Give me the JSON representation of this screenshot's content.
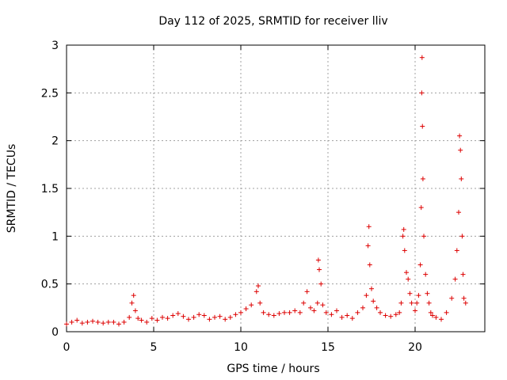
{
  "chart_data": {
    "type": "scatter",
    "title": "Day 112 of 2025, SRMTID for receiver lliv",
    "xlabel": "GPS time / hours",
    "ylabel": "SRMTID / TECUs",
    "xlim": [
      0,
      24
    ],
    "ylim": [
      0,
      3
    ],
    "x_ticks": [
      0,
      5,
      10,
      15,
      20
    ],
    "x_tick_labels": [
      "0",
      "5",
      "10",
      "15",
      "20"
    ],
    "y_ticks": [
      0,
      0.5,
      1,
      1.5,
      2,
      2.5,
      3
    ],
    "y_tick_labels": [
      "0",
      "0.5",
      "1",
      "1.5",
      "2",
      "2.5",
      "3"
    ],
    "grid": true,
    "marker": "+",
    "series_color": "#dd0000",
    "series": [
      {
        "x": [
          0.0,
          0.3,
          0.6,
          0.9,
          1.2,
          1.5,
          1.8,
          2.1,
          2.4,
          2.7,
          3.0,
          3.3,
          3.6,
          3.75,
          3.85,
          3.95,
          4.1,
          4.3,
          4.6,
          4.9,
          5.2,
          5.5,
          5.8,
          6.1,
          6.4,
          6.7,
          7.0,
          7.3,
          7.6,
          7.9,
          8.2,
          8.5,
          8.8,
          9.1,
          9.4,
          9.7,
          10.0,
          10.3,
          10.6,
          10.9,
          11.0,
          11.1,
          11.3,
          11.6,
          11.9,
          12.2,
          12.5,
          12.8,
          13.1,
          13.4,
          13.6,
          13.8,
          14.0,
          14.2,
          14.4,
          14.45,
          14.5,
          14.6,
          14.7,
          14.9,
          15.2,
          15.5,
          15.8,
          16.1,
          16.4,
          16.7,
          17.0,
          17.2,
          17.3,
          17.35,
          17.4,
          17.5,
          17.6,
          17.8,
          18.0,
          18.3,
          18.6,
          18.9,
          19.1,
          19.2,
          19.3,
          19.35,
          19.4,
          19.5,
          19.6,
          19.7,
          19.8,
          20.0,
          20.1,
          20.2,
          20.3,
          20.35,
          20.38,
          20.4,
          20.42,
          20.45,
          20.5,
          20.6,
          20.7,
          20.8,
          20.9,
          21.0,
          21.2,
          21.5,
          21.8,
          22.1,
          22.3,
          22.4,
          22.5,
          22.55,
          22.6,
          22.65,
          22.7,
          22.75,
          22.8,
          22.9
        ],
        "y": [
          0.08,
          0.1,
          0.12,
          0.09,
          0.1,
          0.11,
          0.1,
          0.09,
          0.1,
          0.1,
          0.08,
          0.1,
          0.15,
          0.3,
          0.38,
          0.22,
          0.14,
          0.12,
          0.1,
          0.14,
          0.12,
          0.15,
          0.14,
          0.17,
          0.19,
          0.16,
          0.13,
          0.15,
          0.18,
          0.17,
          0.13,
          0.15,
          0.16,
          0.13,
          0.15,
          0.18,
          0.2,
          0.24,
          0.28,
          0.42,
          0.48,
          0.3,
          0.2,
          0.18,
          0.17,
          0.19,
          0.2,
          0.2,
          0.22,
          0.2,
          0.3,
          0.42,
          0.25,
          0.22,
          0.3,
          0.75,
          0.65,
          0.5,
          0.28,
          0.2,
          0.18,
          0.22,
          0.15,
          0.17,
          0.14,
          0.2,
          0.25,
          0.38,
          0.9,
          1.1,
          0.7,
          0.45,
          0.32,
          0.25,
          0.2,
          0.17,
          0.16,
          0.18,
          0.2,
          0.3,
          1.0,
          1.07,
          0.85,
          0.62,
          0.55,
          0.4,
          0.3,
          0.22,
          0.3,
          0.38,
          0.7,
          1.3,
          2.5,
          2.87,
          2.15,
          1.6,
          1.0,
          0.6,
          0.4,
          0.3,
          0.2,
          0.17,
          0.15,
          0.13,
          0.2,
          0.35,
          0.55,
          0.85,
          1.25,
          2.05,
          1.9,
          1.6,
          1.0,
          0.6,
          0.35,
          0.3
        ]
      }
    ]
  }
}
